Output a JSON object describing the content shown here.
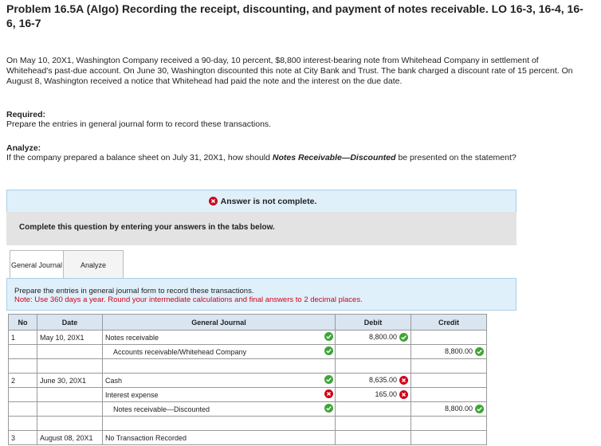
{
  "header": {
    "title": "Problem 16.5A (Algo) Recording the receipt, discounting, and payment of notes receivable. LO 16-3, 16-4, 16-6, 16-7"
  },
  "intro": "On May 10, 20X1, Washington Company received a 90-day, 10 percent, $8,800 interest-bearing note from Whitehead Company in settlement of Whitehead's past-due account. On June 30, Washington discounted this note at City Bank and Trust. The bank charged a discount rate of 15 percent. On August 8, Washington received a notice that Whitehead had paid the note and the interest on the due date.",
  "required": {
    "label": "Required:",
    "text": "Prepare the entries in general journal form to record these transactions."
  },
  "analyze": {
    "label": "Analyze:",
    "text_before": "If the company prepared a balance sheet on July 31, 20X1, how should ",
    "emphasis": "Notes Receivable—Discounted",
    "text_after": " be presented on the statement?"
  },
  "status": "Answer is not complete.",
  "instruction": "Complete this question by entering your answers in the tabs below.",
  "tabs": [
    "General Journal",
    "Analyze"
  ],
  "panel": {
    "text": "Prepare the entries in general journal form to record these transactions.",
    "note": "Note: Use 360 days a year. Round your intermediate calculations and final answers to 2 decimal places."
  },
  "table": {
    "headers": [
      "No",
      "Date",
      "General Journal",
      "Debit",
      "Credit"
    ],
    "entries": [
      {
        "no": "1",
        "date": "May 10, 20X1",
        "lines": [
          {
            "account": "Notes receivable",
            "account_status": "correct",
            "debit": "8,800.00",
            "debit_status": "correct"
          },
          {
            "account": "Accounts receivable/Whitehead Company",
            "account_status": "correct",
            "credit": "8,800.00",
            "credit_status": "correct"
          }
        ]
      },
      {
        "no": "2",
        "date": "June 30, 20X1",
        "lines": [
          {
            "account": "Cash",
            "account_status": "correct",
            "debit": "8,635.00",
            "debit_status": "incorrect"
          },
          {
            "account": "Interest expense",
            "account_status": "incorrect",
            "debit": "165.00",
            "debit_status": "incorrect"
          },
          {
            "account": "Notes receivable—Discounted",
            "account_status": "correct",
            "credit": "8,800.00",
            "credit_status": "correct"
          }
        ]
      },
      {
        "no": "3",
        "date": "August 08, 20X1",
        "lines": [
          {
            "account": "No Transaction Recorded"
          }
        ]
      }
    ]
  }
}
